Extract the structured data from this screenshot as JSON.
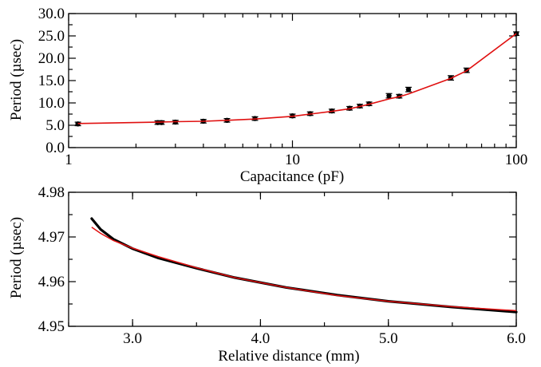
{
  "chart_data": [
    {
      "type": "scatter",
      "title": "",
      "xlabel": "Capacitance (pF)",
      "ylabel": "Period (µsec)",
      "xscale": "log",
      "xlim": [
        1,
        100
      ],
      "ylim": [
        0.0,
        30.0
      ],
      "xticks": [
        1,
        10,
        100
      ],
      "xtick_labels": [
        "1",
        "10",
        "100"
      ],
      "yticks": [
        0,
        5,
        10,
        15,
        20,
        25,
        30
      ],
      "ytick_labels": [
        "0.0",
        "5.0",
        "10.0",
        "15.0",
        "20.0",
        "25.0",
        "30.0"
      ],
      "grid": false,
      "legend": "none",
      "colors": {
        "points": "#000000",
        "fit": "#e01010"
      },
      "series": [
        {
          "kind": "points-with-error-bars",
          "x": [
            1.1,
            2.5,
            2.6,
            3.0,
            4.0,
            5.1,
            6.8,
            10.0,
            12.0,
            15.0,
            18.0,
            20.0,
            22.0,
            27.0,
            30.0,
            33.0,
            51.0,
            60.0,
            100.0
          ],
          "y": [
            5.3,
            5.6,
            5.6,
            5.7,
            5.9,
            6.1,
            6.5,
            7.1,
            7.6,
            8.2,
            8.8,
            9.3,
            9.8,
            11.6,
            11.5,
            13.0,
            15.6,
            17.3,
            25.5
          ],
          "yerr": [
            0.4,
            0.4,
            0.4,
            0.4,
            0.4,
            0.4,
            0.4,
            0.4,
            0.4,
            0.4,
            0.4,
            0.4,
            0.4,
            0.5,
            0.4,
            0.5,
            0.5,
            0.5,
            0.4
          ]
        },
        {
          "kind": "fit-line",
          "x": [
            1.1,
            2.5,
            3.0,
            4.0,
            5.1,
            6.8,
            10.0,
            12.0,
            15.0,
            18.0,
            20.0,
            22.0,
            27.0,
            30.0,
            33.0,
            51.0,
            60.0,
            100.0
          ],
          "y": [
            5.4,
            5.7,
            5.8,
            5.9,
            6.1,
            6.4,
            7.0,
            7.5,
            8.1,
            8.7,
            9.2,
            9.7,
            10.9,
            11.4,
            12.0,
            15.5,
            17.2,
            25.5
          ]
        }
      ]
    },
    {
      "type": "line",
      "title": "",
      "xlabel": "Relative distance (mm)",
      "ylabel": "Period (µsec)",
      "xlim": [
        2.5,
        6.0
      ],
      "ylim": [
        4.95,
        4.98
      ],
      "xticks": [
        3.0,
        4.0,
        5.0,
        6.0
      ],
      "xtick_labels": [
        "3.0",
        "4.0",
        "5.0",
        "6.0"
      ],
      "yticks": [
        4.95,
        4.96,
        4.97,
        4.98
      ],
      "ytick_labels": [
        "4.95",
        "4.96",
        "4.97",
        "4.98"
      ],
      "grid": false,
      "legend": "none",
      "colors": {
        "data": "#000000",
        "fit": "#e01010"
      },
      "series": [
        {
          "kind": "data",
          "x": [
            2.68,
            2.75,
            2.85,
            3.0,
            3.2,
            3.5,
            3.8,
            4.2,
            4.6,
            5.0,
            5.5,
            6.0
          ],
          "y": [
            4.9741,
            4.9717,
            4.9695,
            4.9674,
            4.9653,
            4.963,
            4.9609,
            4.9587,
            4.957,
            4.9556,
            4.9543,
            4.9532
          ]
        },
        {
          "kind": "fit",
          "x": [
            2.68,
            2.75,
            2.85,
            3.0,
            3.2,
            3.5,
            3.8,
            4.2,
            4.6,
            5.0,
            5.5,
            6.0
          ],
          "y": [
            4.9722,
            4.9708,
            4.9692,
            4.9675,
            4.9656,
            4.9631,
            4.9609,
            4.9587,
            4.9569,
            4.9556,
            4.9544,
            4.9535
          ]
        }
      ]
    }
  ]
}
